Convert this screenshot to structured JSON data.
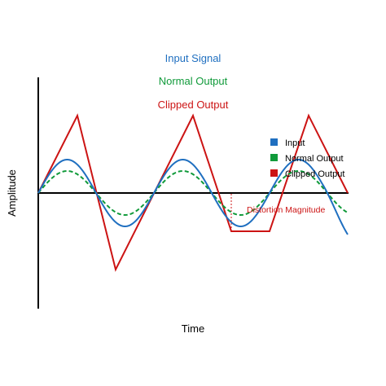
{
  "header": {
    "input_label": "Input Signal",
    "normal_label": "Normal Output",
    "clipped_label": "Clipped Output"
  },
  "axes": {
    "ylabel": "Amplitude",
    "xlabel": "Time"
  },
  "legend": {
    "items": [
      {
        "label": "Input",
        "color": "#1f6fc0"
      },
      {
        "label": "Normal Output",
        "color": "#109a3a"
      },
      {
        "label": "Clipped Output",
        "color": "#cc1414"
      }
    ]
  },
  "annotation": {
    "distortion_label": "Distortion Magnitude"
  },
  "colors": {
    "input": "#1f6fc0",
    "normal": "#109a3a",
    "clipped": "#cc1414",
    "axis": "#000000"
  }
}
